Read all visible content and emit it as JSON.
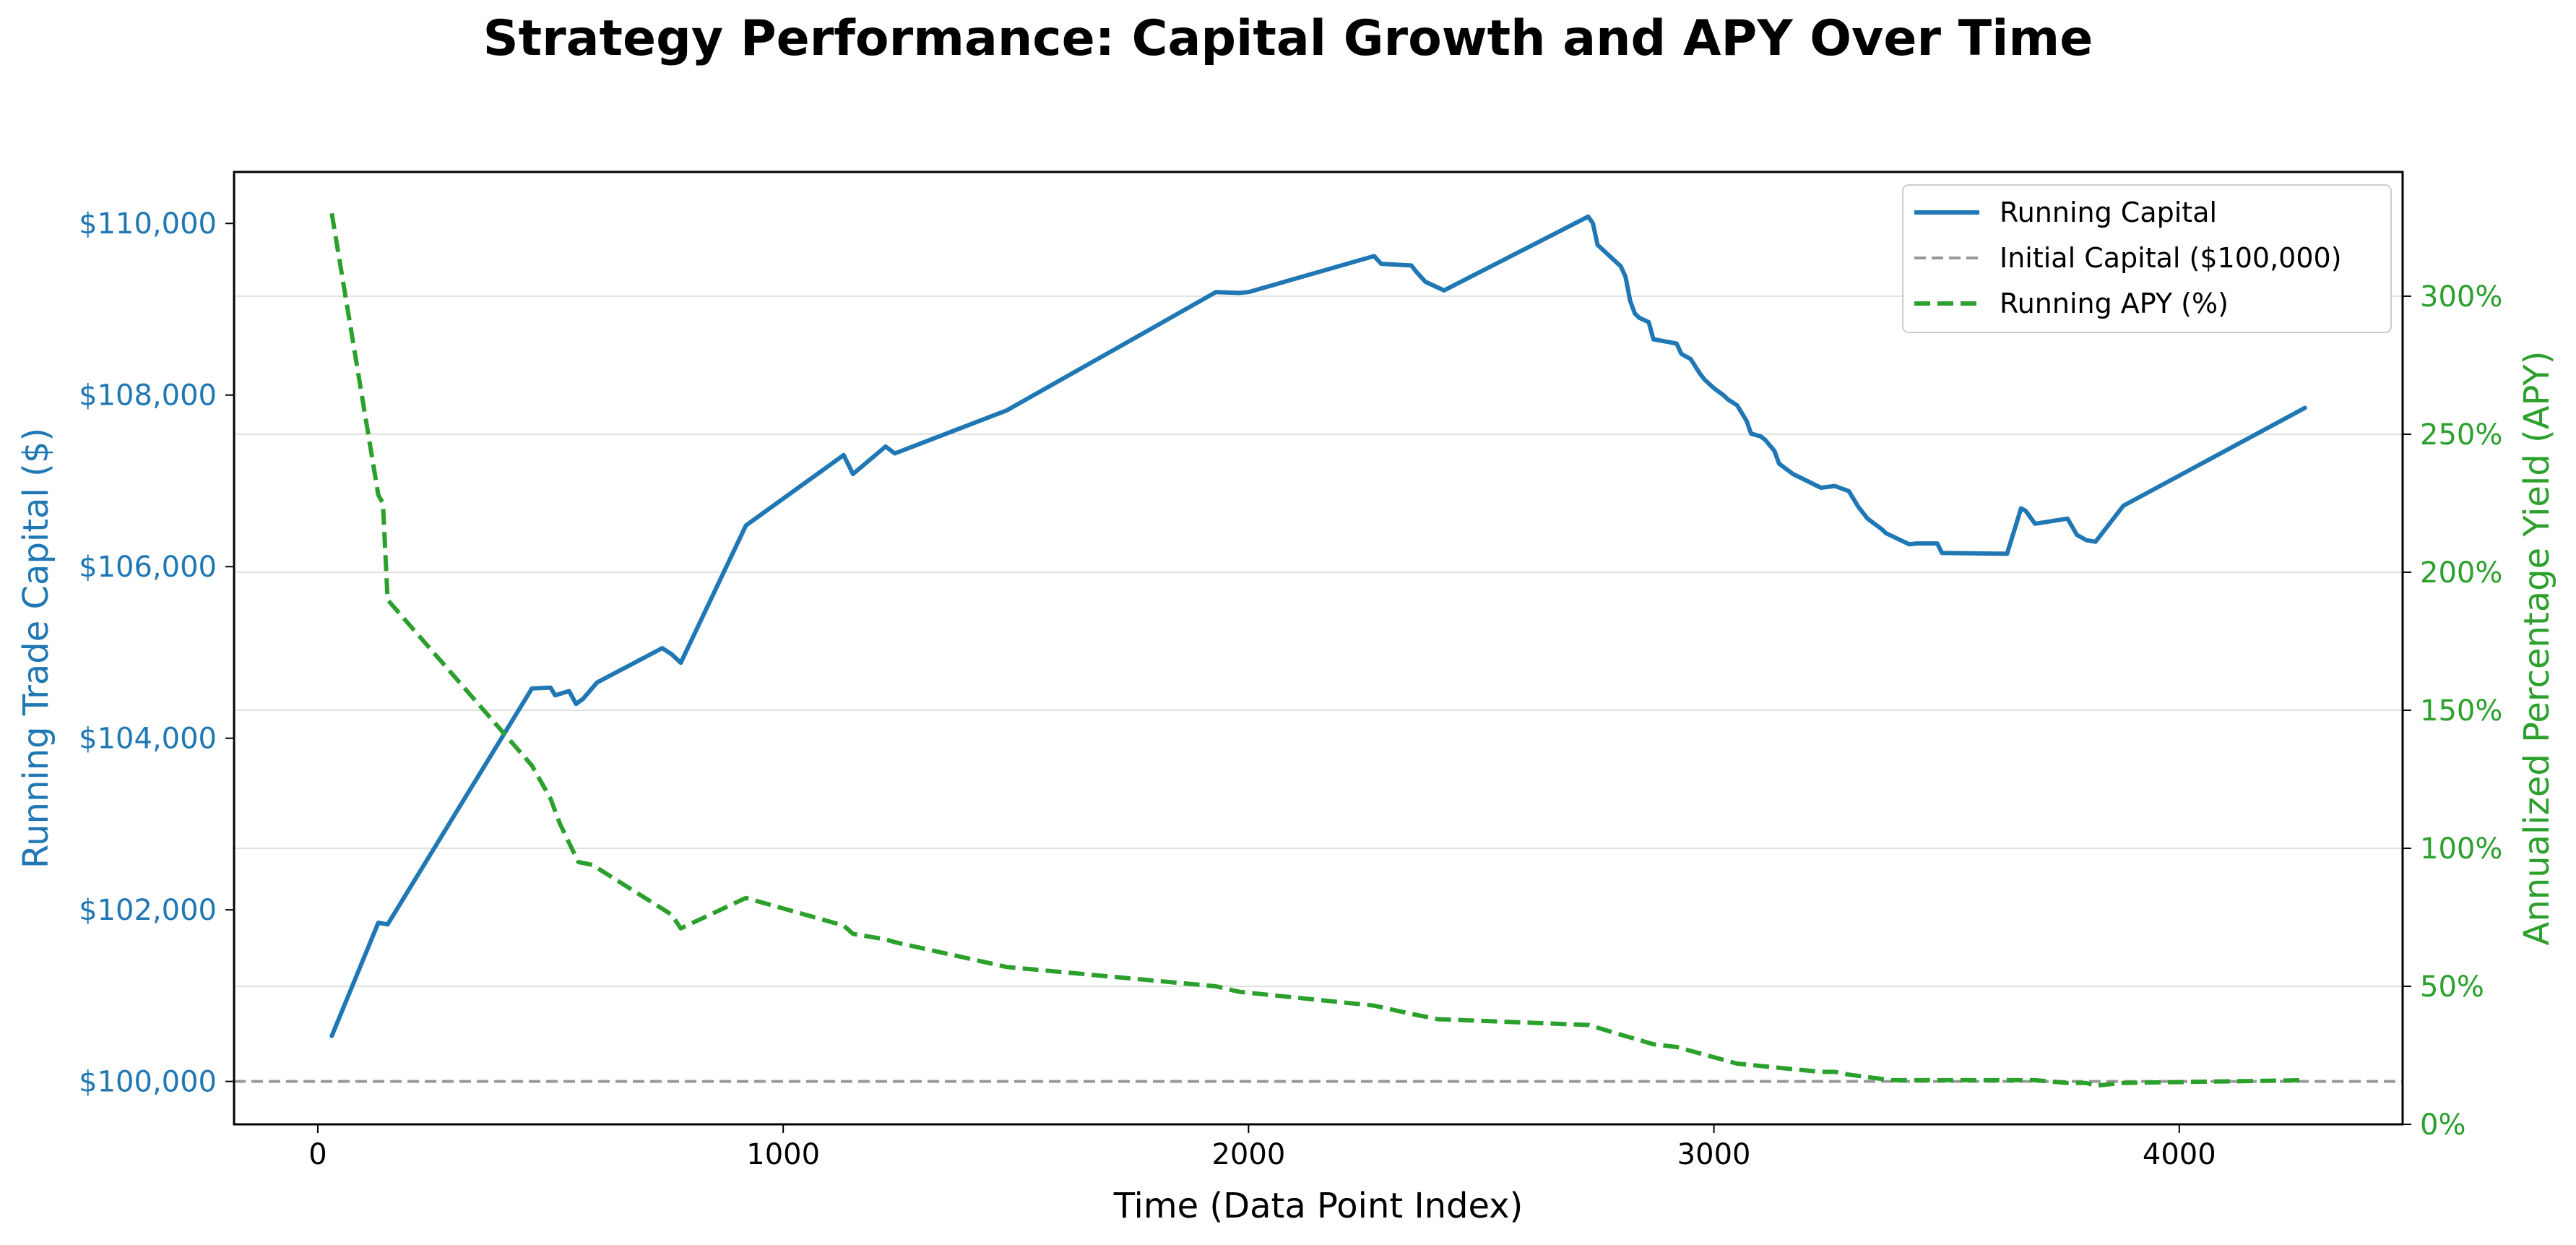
{
  "chart_data": {
    "type": "line",
    "title": "Strategy Performance: Capital Growth and APY Over Time",
    "xlabel": "Time (Data Point Index)",
    "ylabel_left": "Running Trade Capital ($)",
    "ylabel_right": "Annualized Percentage Yield (APY)",
    "xlim": [
      -180,
      4480
    ],
    "ylim_left": [
      99500,
      110600
    ],
    "ylim_right": [
      0,
      345
    ],
    "x_ticks": [
      0,
      1000,
      2000,
      3000,
      4000
    ],
    "x_tick_labels": [
      "0",
      "1000",
      "2000",
      "3000",
      "4000"
    ],
    "y_left_ticks": [
      100000,
      102000,
      104000,
      106000,
      108000,
      110000
    ],
    "y_left_tick_labels": [
      "$100,000",
      "$102,000",
      "$104,000",
      "$106,000",
      "$108,000",
      "$110,000"
    ],
    "y_right_ticks": [
      0,
      50,
      100,
      150,
      200,
      250,
      300
    ],
    "y_right_tick_labels": [
      "0%",
      "50%",
      "100%",
      "150%",
      "200%",
      "250%",
      "300%"
    ],
    "grid": "horizontal, right axis",
    "legend_placement": "top-right",
    "colors": {
      "capital": "#1f77b4",
      "initial": "#999999",
      "apy": "#2ca02c"
    },
    "series": [
      {
        "name": "Running Capital",
        "axis": "left",
        "style": "solid",
        "x": [
          30,
          130,
          150,
          460,
          500,
          510,
          540,
          555,
          570,
          600,
          740,
          760,
          780,
          920,
          1130,
          1150,
          1220,
          1240,
          1480,
          1930,
          1980,
          2000,
          2270,
          2285,
          2350,
          2360,
          2380,
          2420,
          2730,
          2740,
          2750,
          2800,
          2810,
          2820,
          2830,
          2840,
          2860,
          2870,
          2900,
          2920,
          2930,
          2950,
          2970,
          2980,
          3000,
          3020,
          3030,
          3050,
          3070,
          3080,
          3100,
          3110,
          3130,
          3140,
          3170,
          3230,
          3260,
          3270,
          3290,
          3310,
          3330,
          3360,
          3370,
          3420,
          3435,
          3480,
          3490,
          3630,
          3660,
          3670,
          3690,
          3760,
          3780,
          3800,
          3820,
          3880,
          4270
        ],
        "values": [
          100530,
          101850,
          101830,
          104580,
          104590,
          104500,
          104550,
          104400,
          104460,
          104650,
          105050,
          104980,
          104880,
          106480,
          107300,
          107080,
          107400,
          107320,
          107820,
          109200,
          109190,
          109200,
          109620,
          109530,
          109510,
          109440,
          109320,
          109220,
          110080,
          110000,
          109750,
          109500,
          109380,
          109100,
          108950,
          108900,
          108850,
          108650,
          108620,
          108600,
          108480,
          108420,
          108250,
          108180,
          108080,
          108000,
          107950,
          107880,
          107700,
          107550,
          107520,
          107480,
          107350,
          107200,
          107080,
          106920,
          106940,
          106920,
          106880,
          106700,
          106560,
          106440,
          106390,
          106260,
          106270,
          106270,
          106160,
          106150,
          106680,
          106650,
          106500,
          106560,
          106370,
          106310,
          106290,
          106710,
          107850
        ]
      },
      {
        "name": "Initial Capital ($100,000)",
        "axis": "left",
        "style": "dashed",
        "x": [
          -180,
          4480
        ],
        "values": [
          100000,
          100000
        ]
      },
      {
        "name": "Running APY (%)",
        "axis": "right",
        "style": "dashed",
        "x": [
          30,
          130,
          140,
          150,
          460,
          500,
          520,
          560,
          590,
          760,
          780,
          920,
          1130,
          1150,
          1220,
          1240,
          1480,
          1930,
          1980,
          2270,
          2350,
          2410,
          2420,
          2730,
          2750,
          2850,
          2870,
          2920,
          3050,
          3170,
          3230,
          3260,
          3290,
          3380,
          3490,
          3630,
          3660,
          3690,
          3760,
          3800,
          3820,
          3880,
          4270
        ],
        "values": [
          330,
          228,
          225,
          190,
          130,
          118,
          109,
          95,
          94,
          76,
          71,
          82,
          72,
          69,
          67,
          66,
          57,
          50,
          48,
          43,
          40,
          38,
          38,
          36,
          35,
          30,
          29,
          28,
          22,
          20,
          19,
          19,
          18,
          16,
          16,
          16,
          16,
          16,
          15,
          15,
          14,
          15,
          16
        ]
      }
    ]
  }
}
